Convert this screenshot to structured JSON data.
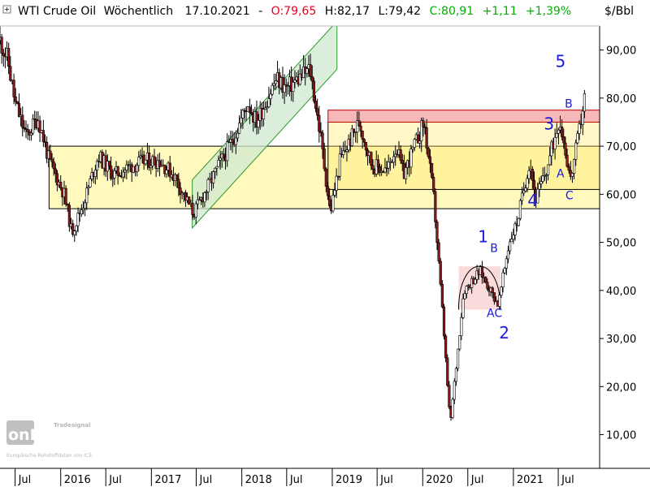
{
  "header": {
    "symbol": "WTI Crude Oil",
    "interval": "Wöchentlich",
    "date": "17.10.2021",
    "open_text": "O:79,65",
    "high_text": "H:82,17",
    "low_text": "L:79,42",
    "close_text": "C:80,91",
    "change_text": "+1,11",
    "change_pct_text": "+1,39%",
    "unit": "$/Bbl"
  },
  "colors": {
    "open": "#e8001c",
    "close": "#00b000",
    "wave_label": "#1a1adc",
    "zone_yellow": "#fff7a8",
    "zone_red": "#f4a6a6",
    "channel_green": "#cfe8cf"
  },
  "chart_data": {
    "type": "candlestick",
    "y_unit": "$/Bbl",
    "ylim": [
      3,
      95
    ],
    "y_ticks": [
      "90,00",
      "80,00",
      "70,00",
      "60,00",
      "50,00",
      "40,00",
      "30,00",
      "20,00",
      "10,00"
    ],
    "x_ticks": [
      "Jul",
      "2016",
      "Jul",
      "2017",
      "Jul",
      "2018",
      "Jul",
      "2019",
      "Jul",
      "2020",
      "Jul",
      "2021",
      "Jul"
    ],
    "x_tick_dates": [
      "2015-07-01",
      "2016-01-01",
      "2016-07-01",
      "2017-01-01",
      "2017-07-01",
      "2018-01-01",
      "2018-07-01",
      "2019-01-01",
      "2019-07-01",
      "2020-01-01",
      "2020-07-01",
      "2021-01-01",
      "2021-07-01"
    ],
    "x_range": [
      "2015-05-01",
      "2021-12-15"
    ],
    "price_path": [
      [
        "2015-05-01",
        92
      ],
      [
        "2015-06-01",
        88
      ],
      [
        "2015-07-01",
        79
      ],
      [
        "2015-08-15",
        72
      ],
      [
        "2015-10-01",
        76
      ],
      [
        "2015-11-15",
        67
      ],
      [
        "2016-01-15",
        60
      ],
      [
        "2016-02-15",
        52
      ],
      [
        "2016-04-01",
        58
      ],
      [
        "2016-06-01",
        68
      ],
      [
        "2016-08-01",
        64
      ],
      [
        "2016-10-15",
        66
      ],
      [
        "2016-12-15",
        67
      ],
      [
        "2017-02-01",
        67
      ],
      [
        "2017-04-01",
        64
      ],
      [
        "2017-06-20",
        56
      ],
      [
        "2017-08-01",
        60
      ],
      [
        "2017-10-01",
        66
      ],
      [
        "2017-12-01",
        72
      ],
      [
        "2018-01-25",
        79
      ],
      [
        "2018-03-01",
        75
      ],
      [
        "2018-05-20",
        84
      ],
      [
        "2018-07-01",
        82
      ],
      [
        "2018-10-03",
        86
      ],
      [
        "2018-11-15",
        72
      ],
      [
        "2018-12-24",
        56
      ],
      [
        "2019-02-01",
        67
      ],
      [
        "2019-04-20",
        75
      ],
      [
        "2019-06-10",
        66
      ],
      [
        "2019-08-10",
        65
      ],
      [
        "2019-09-16",
        70
      ],
      [
        "2019-10-15",
        64
      ],
      [
        "2020-01-06",
        75
      ],
      [
        "2020-02-15",
        59
      ],
      [
        "2020-03-20",
        36
      ],
      [
        "2020-04-21",
        12
      ],
      [
        "2020-06-15",
        40
      ],
      [
        "2020-08-20",
        44
      ],
      [
        "2020-10-01",
        40
      ],
      [
        "2020-11-01",
        37
      ],
      [
        "2020-12-15",
        50
      ],
      [
        "2021-01-15",
        54
      ],
      [
        "2021-03-08",
        67
      ],
      [
        "2021-04-01",
        59
      ],
      [
        "2021-05-15",
        65
      ],
      [
        "2021-07-06",
        76
      ],
      [
        "2021-08-20",
        63
      ],
      [
        "2021-09-20",
        72
      ],
      [
        "2021-10-17",
        81
      ]
    ],
    "annotations": {
      "yellow_zone": {
        "x": [
          "2015-11-15",
          "2021-12-15"
        ],
        "y": [
          57,
          70
        ]
      },
      "yellow_zone_upper": {
        "x": [
          "2018-12-15",
          "2021-12-15"
        ],
        "y": [
          61,
          75
        ]
      },
      "red_zone": {
        "x": [
          "2018-12-15",
          "2021-12-15"
        ],
        "y": [
          75,
          77.5
        ]
      },
      "green_channel": {
        "x": [
          "2017-06-15",
          "2019-01-20"
        ],
        "lower": [
          53,
          86
        ],
        "upper": [
          63,
          96
        ]
      },
      "pink_zone": {
        "x": [
          "2020-05-25",
          "2020-11-10"
        ],
        "y": [
          36,
          45
        ]
      },
      "rounded_top_arc": {
        "x": [
          "2020-05-25",
          "2020-11-10"
        ],
        "peak": 45
      },
      "wave_labels": [
        {
          "text": "1",
          "date": "2020-09-01",
          "price": 50,
          "size": "big"
        },
        {
          "text": "B",
          "date": "2020-10-15",
          "price": 48,
          "size": "small"
        },
        {
          "text": "A",
          "date": "2020-10-01",
          "price": 34.5,
          "size": "small"
        },
        {
          "text": "C",
          "date": "2020-11-01",
          "price": 34.5,
          "size": "small"
        },
        {
          "text": "2",
          "date": "2020-11-25",
          "price": 30,
          "size": "big"
        },
        {
          "text": "3",
          "date": "2021-05-25",
          "price": 73.5,
          "size": "big"
        },
        {
          "text": "4",
          "date": "2021-03-20",
          "price": 57.5,
          "size": "big"
        },
        {
          "text": "5",
          "date": "2021-07-10",
          "price": 86.5,
          "size": "big"
        },
        {
          "text": "B",
          "date": "2021-08-12",
          "price": 78,
          "size": "small"
        },
        {
          "text": "A",
          "date": "2021-07-10",
          "price": 63.5,
          "size": "small"
        },
        {
          "text": "C",
          "date": "2021-08-15",
          "price": 59,
          "size": "small"
        }
      ]
    }
  },
  "watermark": {
    "brand": "Tradesignal",
    "product": "onLine",
    "note": "Europäische Rohstoffdaten von ICE"
  }
}
